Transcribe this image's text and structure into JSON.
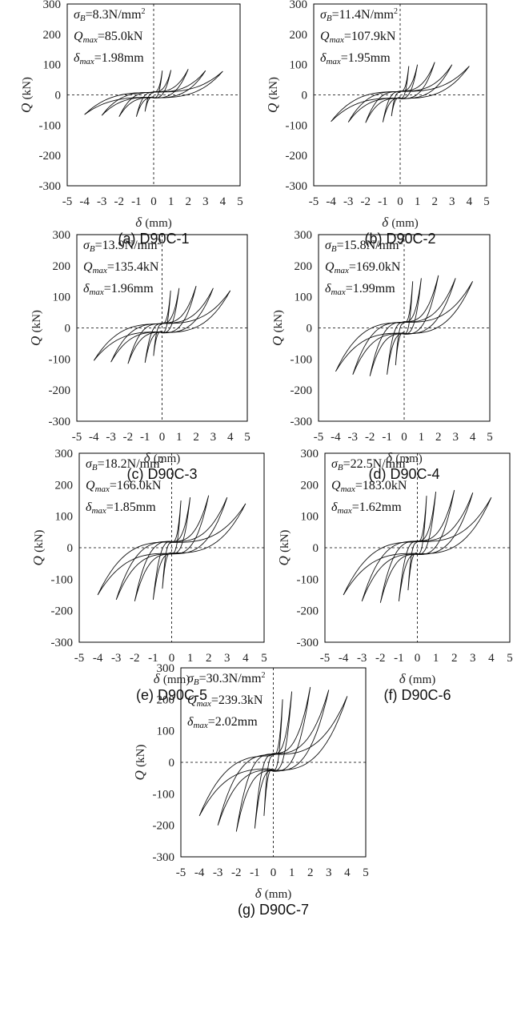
{
  "chart_data": [
    {
      "type": "line",
      "caption": "(a) D90C-1",
      "xlabel_symbol": "δ",
      "xlabel_unit": "(mm)",
      "ylabel_symbol": "Q",
      "ylabel_unit": "(kN)",
      "xlim": [
        -5,
        5
      ],
      "ylim": [
        -300,
        300
      ],
      "xticks": [
        "-5",
        "-4",
        "-3",
        "-2",
        "-1",
        "0",
        "1",
        "2",
        "3",
        "4",
        "5"
      ],
      "yticks": [
        "300",
        "200",
        "100",
        "0",
        "-100",
        "-200",
        "-300"
      ],
      "annotations": {
        "sigma_value": "=8.3N/mm",
        "qmax_value": "=85.0kN",
        "dmax_value": "=1.98mm"
      },
      "envelope": {
        "x": [
          -4,
          -3,
          -2,
          -1,
          -0.5,
          0,
          0.5,
          1,
          2,
          3,
          4
        ],
        "y": [
          -65,
          -68,
          -72,
          -72,
          -55,
          0,
          80,
          82,
          85,
          80,
          78
        ]
      }
    },
    {
      "type": "line",
      "caption": "(b) D90C-2",
      "xlabel_symbol": "δ",
      "xlabel_unit": "(mm)",
      "ylabel_symbol": "Q",
      "ylabel_unit": "(kN)",
      "xlim": [
        -5,
        5
      ],
      "ylim": [
        -300,
        300
      ],
      "xticks": [
        "-5",
        "-4",
        "-3",
        "-2",
        "-1",
        "0",
        "1",
        "2",
        "3",
        "4",
        "5"
      ],
      "yticks": [
        "300",
        "200",
        "100",
        "0",
        "-100",
        "-200",
        "-300"
      ],
      "annotations": {
        "sigma_value": "=11.4N/mm",
        "qmax_value": "=107.9kN",
        "dmax_value": "=1.95mm"
      },
      "envelope": {
        "x": [
          -4,
          -3,
          -2,
          -1,
          -0.5,
          0,
          0.5,
          1,
          2,
          3,
          4
        ],
        "y": [
          -88,
          -90,
          -92,
          -90,
          -70,
          0,
          95,
          100,
          108,
          100,
          95
        ]
      }
    },
    {
      "type": "line",
      "caption": "(c) D90C-3",
      "xlabel_symbol": "δ",
      "xlabel_unit": "(mm)",
      "ylabel_symbol": "Q",
      "ylabel_unit": "(kN)",
      "xlim": [
        -5,
        5
      ],
      "ylim": [
        -300,
        300
      ],
      "xticks": [
        "-5",
        "-4",
        "-3",
        "-2",
        "-1",
        "0",
        "1",
        "2",
        "3",
        "4",
        "5"
      ],
      "yticks": [
        "300",
        "200",
        "100",
        "0",
        "-100",
        "-200",
        "-300"
      ],
      "annotations": {
        "sigma_value": "=13.9N/mm",
        "qmax_value": "=135.4kN",
        "dmax_value": "=1.96mm"
      },
      "envelope": {
        "x": [
          -4,
          -3,
          -2,
          -1,
          -0.5,
          0,
          0.5,
          1,
          2,
          3,
          4
        ],
        "y": [
          -105,
          -110,
          -115,
          -112,
          -90,
          0,
          120,
          128,
          135,
          128,
          120
        ]
      }
    },
    {
      "type": "line",
      "caption": "(d) D90C-4",
      "xlabel_symbol": "δ",
      "xlabel_unit": "(mm)",
      "ylabel_symbol": "Q",
      "ylabel_unit": "(kN)",
      "xlim": [
        -5,
        5
      ],
      "ylim": [
        -300,
        300
      ],
      "xticks": [
        "-5",
        "-4",
        "-3",
        "-2",
        "-1",
        "0",
        "1",
        "2",
        "3",
        "4",
        "5"
      ],
      "yticks": [
        "300",
        "200",
        "100",
        "0",
        "-100",
        "-200",
        "-300"
      ],
      "annotations": {
        "sigma_value": "=15.8N/mm",
        "qmax_value": "=169.0kN",
        "dmax_value": "=1.99mm"
      },
      "envelope": {
        "x": [
          -4,
          -3,
          -2,
          -1,
          -0.5,
          0,
          0.5,
          1,
          2,
          3,
          4
        ],
        "y": [
          -140,
          -150,
          -155,
          -150,
          -120,
          0,
          150,
          160,
          169,
          160,
          150
        ]
      }
    },
    {
      "type": "line",
      "caption": "(e) D90C-5",
      "xlabel_symbol": "δ",
      "xlabel_unit": "(mm)",
      "ylabel_symbol": "Q",
      "ylabel_unit": "(kN)",
      "xlim": [
        -5,
        5
      ],
      "ylim": [
        -300,
        300
      ],
      "xticks": [
        "-5",
        "-4",
        "-3",
        "-2",
        "-1",
        "0",
        "1",
        "2",
        "3",
        "4",
        "5"
      ],
      "yticks": [
        "300",
        "200",
        "100",
        "0",
        "-100",
        "-200",
        "-300"
      ],
      "annotations": {
        "sigma_value": "=18.2N/mm",
        "qmax_value": "=166.0kN",
        "dmax_value": "=1.85mm"
      },
      "envelope": {
        "x": [
          -4,
          -3,
          -2,
          -1,
          -0.5,
          0,
          0.5,
          1,
          2,
          3,
          4
        ],
        "y": [
          -150,
          -165,
          -170,
          -165,
          -130,
          0,
          150,
          160,
          166,
          160,
          140
        ]
      }
    },
    {
      "type": "line",
      "caption": "(f) D90C-6",
      "xlabel_symbol": "δ",
      "xlabel_unit": "(mm)",
      "ylabel_symbol": "Q",
      "ylabel_unit": "(kN)",
      "xlim": [
        -5,
        5
      ],
      "ylim": [
        -300,
        300
      ],
      "xticks": [
        "-5",
        "-4",
        "-3",
        "-2",
        "-1",
        "0",
        "1",
        "2",
        "3",
        "4",
        "5"
      ],
      "yticks": [
        "300",
        "200",
        "100",
        "0",
        "-100",
        "-200",
        "-300"
      ],
      "annotations": {
        "sigma_value": "=22.5N/mm",
        "qmax_value": "=183.0kN",
        "dmax_value": "=1.62mm"
      },
      "envelope": {
        "x": [
          -4,
          -3,
          -2,
          -1,
          -0.5,
          0,
          0.5,
          1,
          2,
          3,
          4
        ],
        "y": [
          -150,
          -170,
          -175,
          -170,
          -135,
          0,
          165,
          178,
          183,
          175,
          160
        ]
      }
    },
    {
      "type": "line",
      "caption": "(g) D90C-7",
      "xlabel_symbol": "δ",
      "xlabel_unit": "(mm)",
      "ylabel_symbol": "Q",
      "ylabel_unit": "(kN)",
      "xlim": [
        -5,
        5
      ],
      "ylim": [
        -300,
        300
      ],
      "xticks": [
        "-5",
        "-4",
        "-3",
        "-2",
        "-1",
        "0",
        "1",
        "2",
        "3",
        "4",
        "5"
      ],
      "yticks": [
        "300",
        "200",
        "100",
        "0",
        "-100",
        "-200",
        "-300"
      ],
      "annotations": {
        "sigma_value": "=30.3N/mm",
        "qmax_value": "=239.3kN",
        "dmax_value": "=2.02mm"
      },
      "envelope": {
        "x": [
          -4,
          -3,
          -2,
          -1,
          -0.5,
          0,
          0.5,
          1,
          2,
          3,
          4
        ],
        "y": [
          -170,
          -200,
          -220,
          -210,
          -170,
          0,
          200,
          225,
          239,
          230,
          210
        ]
      }
    }
  ]
}
